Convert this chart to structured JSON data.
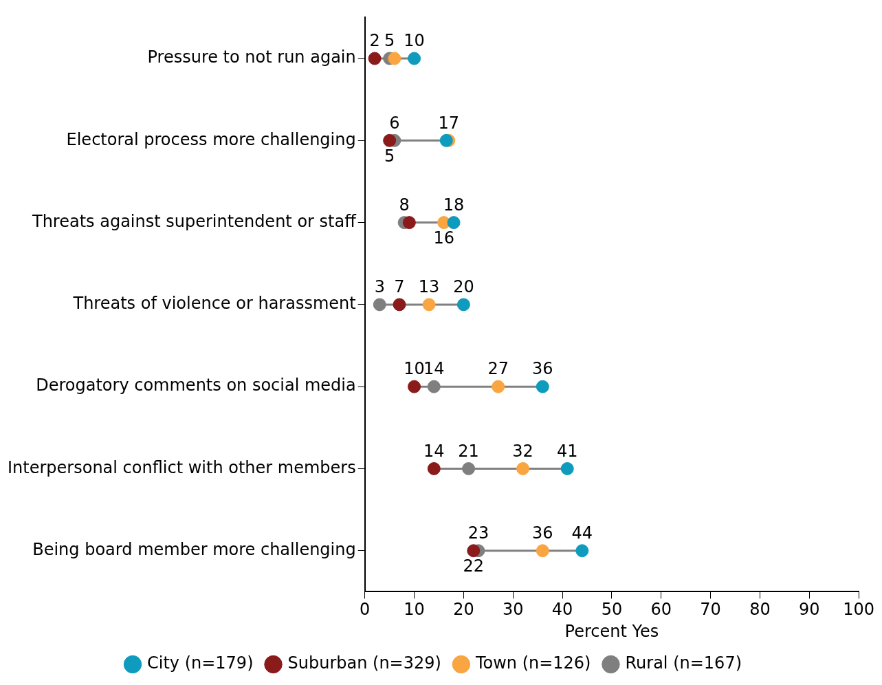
{
  "chart_data": {
    "type": "scatter",
    "orientation": "horizontal",
    "xlabel": "Percent Yes",
    "categories": [
      "Pressure to not run again",
      "Electoral process more challenging",
      "Threats against superintendent or staff",
      "Threats of violence or harassment",
      "Derogatory comments on social media",
      "Interpersonal conflict with other members",
      "Being board member more challenging"
    ],
    "xlim": [
      0,
      100
    ],
    "xticks": [
      0,
      10,
      20,
      30,
      40,
      50,
      60,
      70,
      80,
      90,
      100
    ],
    "grid": false,
    "legend": "bottom",
    "marker": "circle",
    "series": [
      {
        "name": "City (n=179)",
        "color": "#0f9bbd",
        "values": [
          10,
          16.5,
          18,
          20,
          36,
          41,
          44
        ],
        "value_labels": [
          "10",
          null,
          "18",
          "20",
          "36",
          "41",
          "44"
        ]
      },
      {
        "name": "Suburban (n=329)",
        "color": "#8b1a1a",
        "values": [
          2,
          5,
          9,
          7,
          10,
          14,
          22
        ],
        "value_labels": [
          "2",
          "5",
          null,
          "7",
          "10",
          "14",
          "22"
        ]
      },
      {
        "name": "Town (n=126)",
        "color": "#f9a541",
        "values": [
          6,
          17,
          16,
          13,
          27,
          32,
          36
        ],
        "value_labels": [
          null,
          "17",
          "16",
          "13",
          "27",
          "32",
          "36"
        ]
      },
      {
        "name": "Rural (n=167)",
        "color": "#7f7f7f",
        "values": [
          5,
          6,
          8,
          3,
          14,
          21,
          23
        ],
        "value_labels": [
          "5",
          "6",
          "8",
          "3",
          "14",
          "21",
          "23"
        ]
      }
    ]
  }
}
